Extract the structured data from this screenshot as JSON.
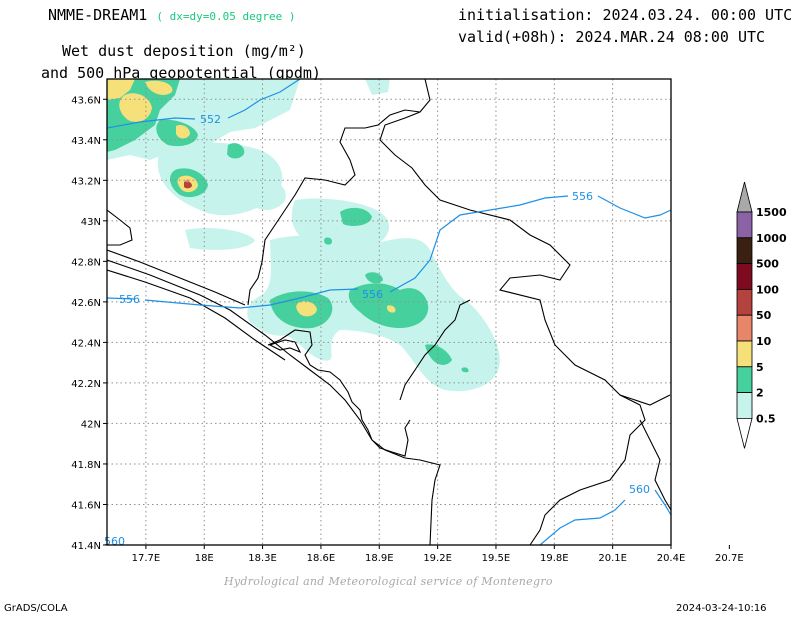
{
  "header": {
    "model": "NMME-DREAM1",
    "resolution": "( dx=dy=0.05 degree )",
    "field_line1": "Wet dust deposition (mg/m²)",
    "field_line2": "and 500 hPa geopotential (gpdm)",
    "init": "initialisation: 2024.03.24. 00:00 UTC",
    "valid": "valid(+08h): 2024.MAR.24 08:00 UTC"
  },
  "map": {
    "lon_labels": [
      "17.7E",
      "18E",
      "18.3E",
      "18.6E",
      "18.9E",
      "19.2E",
      "19.5E",
      "19.8E",
      "20.1E",
      "20.4E",
      "20.7E"
    ],
    "lat_labels": [
      "43.6N",
      "43.4N",
      "43.2N",
      "43N",
      "42.8N",
      "42.6N",
      "42.4N",
      "42.2N",
      "42N",
      "41.8N",
      "41.6N",
      "41.4N"
    ],
    "contour_labels": [
      "552",
      "556",
      "556",
      "556",
      "560",
      "560"
    ],
    "contour_color": "#1e90e6"
  },
  "legend": {
    "levels": [
      "1500",
      "1000",
      "500",
      "100",
      "50",
      "10",
      "5",
      "2",
      "0.5"
    ],
    "colors": [
      "#a9a9a9",
      "#8c62a6",
      "#3a2010",
      "#7d0a1e",
      "#b5433d",
      "#e8866a",
      "#f5e07a",
      "#45d09d",
      "#c6f4ec",
      "#ffffff"
    ]
  },
  "footer": {
    "credit": "Hydrological and Meteorological service of Montenegro",
    "software": "GrADS/COLA",
    "timestamp": "2024-03-24-10:16"
  }
}
